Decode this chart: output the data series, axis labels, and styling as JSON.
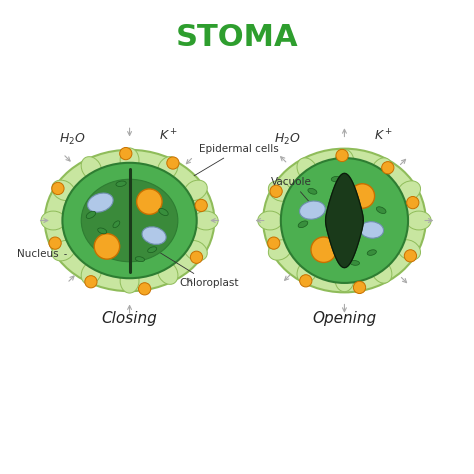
{
  "title": "STOMA",
  "title_color": "#2e9e2e",
  "title_fontsize": 22,
  "bg_color": "#ffffff",
  "label_closing": "Closing",
  "label_opening": "Opening",
  "labels": {
    "epidermal_cells": "Epidermal cells",
    "vacuole": "Vacuole",
    "chloroplast": "Chloroplast",
    "nucleus": "Nucleus"
  },
  "colors": {
    "outer_cell_fill": "#c8e6a0",
    "outer_cell_edge": "#8fbc5a",
    "guard_cell_fill": "#4caf50",
    "guard_cell_edge": "#2e7d32",
    "inner_fill": "#3a8a3a",
    "stoma_opening": "#1a3a1a",
    "vacuole_fill": "#b0c8e8",
    "vacuole_edge": "#7090b0",
    "chloroplast_fill": "#388e3c",
    "chloroplast_edge": "#1b5e20",
    "nucleus_fill": "#f5a623",
    "nucleus_edge": "#c87000",
    "arrow_color": "#aaaaaa",
    "label_color": "#333333"
  }
}
